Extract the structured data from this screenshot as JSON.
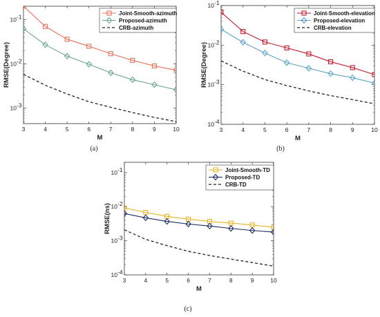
{
  "chart_data": [
    {
      "type": "line",
      "caption": "(a)",
      "xlabel": "M",
      "ylabel": "RMSE(Degree)",
      "x": [
        3,
        4,
        5,
        6,
        7,
        8,
        9,
        10
      ],
      "xlim": [
        3,
        10
      ],
      "ylim": [
        0.00045,
        0.2
      ],
      "yscale": "log",
      "yticks": [
        {
          "label": "10",
          "exp": "-1",
          "value": 0.1
        },
        {
          "label": "10",
          "exp": "-2",
          "value": 0.01
        },
        {
          "label": "10",
          "exp": "-3",
          "value": 0.001
        }
      ],
      "legend_position": "top-right",
      "grid": false,
      "series": [
        {
          "name": "Joint-Smooth-azimuth",
          "color": "#e8735a",
          "marker": "square",
          "values": [
            0.2,
            0.07,
            0.036,
            0.025,
            0.017,
            0.012,
            0.009,
            0.0072
          ]
        },
        {
          "name": "Proposed-azimuth",
          "color": "#6aa88a",
          "marker": "diamond",
          "values": [
            0.062,
            0.027,
            0.015,
            0.0098,
            0.0063,
            0.0044,
            0.0034,
            0.0026
          ]
        },
        {
          "name": "CRB-azimuth",
          "color": "#222222",
          "marker": "none",
          "dash": true,
          "values": [
            0.0058,
            0.0033,
            0.0021,
            0.0014,
            0.00105,
            0.0008,
            0.00062,
            0.0005
          ]
        }
      ]
    },
    {
      "type": "line",
      "caption": "(b)",
      "xlabel": "M",
      "ylabel": "RMSE(Degree)",
      "x": [
        3,
        4,
        5,
        6,
        7,
        8,
        9,
        10
      ],
      "xlim": [
        3,
        10
      ],
      "ylim": [
        0.0001,
        0.1
      ],
      "yscale": "log",
      "yticks": [
        {
          "label": "10",
          "exp": "-1",
          "value": 0.1
        },
        {
          "label": "10",
          "exp": "-2",
          "value": 0.01
        },
        {
          "label": "10",
          "exp": "-3",
          "value": 0.001
        },
        {
          "label": "10",
          "exp": "-4",
          "value": 0.0001
        }
      ],
      "legend_position": "top-right",
      "grid": false,
      "series": [
        {
          "name": "Joint-Smooth-elevation",
          "color": "#c0182a",
          "marker": "square",
          "values": [
            0.068,
            0.022,
            0.012,
            0.0085,
            0.006,
            0.0038,
            0.0027,
            0.0018
          ]
        },
        {
          "name": "Proposed-elevation",
          "color": "#5ba3c9",
          "marker": "diamond",
          "values": [
            0.025,
            0.0118,
            0.0063,
            0.0036,
            0.0026,
            0.0019,
            0.0015,
            0.0011
          ]
        },
        {
          "name": "CRB-elevation",
          "color": "#222222",
          "marker": "none",
          "dash": true,
          "values": [
            0.004,
            0.0022,
            0.00135,
            0.00095,
            0.0007,
            0.00053,
            0.00042,
            0.00033
          ]
        }
      ]
    },
    {
      "type": "line",
      "caption": "(c)",
      "xlabel": "M",
      "ylabel": "RMSE(ns)",
      "x": [
        3,
        4,
        5,
        6,
        7,
        8,
        9,
        10
      ],
      "xlim": [
        3,
        10
      ],
      "ylim": [
        0.0001,
        0.2
      ],
      "yscale": "log",
      "yticks": [
        {
          "label": "10",
          "exp": "-1",
          "value": 0.1
        },
        {
          "label": "10",
          "exp": "-2",
          "value": 0.01
        },
        {
          "label": "10",
          "exp": "-3",
          "value": 0.001
        },
        {
          "label": "10",
          "exp": "-4",
          "value": 0.0001
        }
      ],
      "legend_position": "top-right",
      "grid": false,
      "series": [
        {
          "name": "Joint-Smooth-TD",
          "color": "#e6b422",
          "marker": "square",
          "values": [
            0.0092,
            0.0068,
            0.0052,
            0.0043,
            0.0037,
            0.0033,
            0.0029,
            0.0025
          ]
        },
        {
          "name": "Proposed-TD",
          "color": "#1a2a5e",
          "marker": "diamond",
          "values": [
            0.0063,
            0.0047,
            0.0037,
            0.0031,
            0.0027,
            0.0023,
            0.002,
            0.0018
          ]
        },
        {
          "name": "CRB-TD",
          "color": "#222222",
          "marker": "none",
          "dash": true,
          "values": [
            0.0021,
            0.0011,
            0.00072,
            0.00049,
            0.00037,
            0.00029,
            0.00023,
            0.00018
          ]
        }
      ]
    }
  ]
}
